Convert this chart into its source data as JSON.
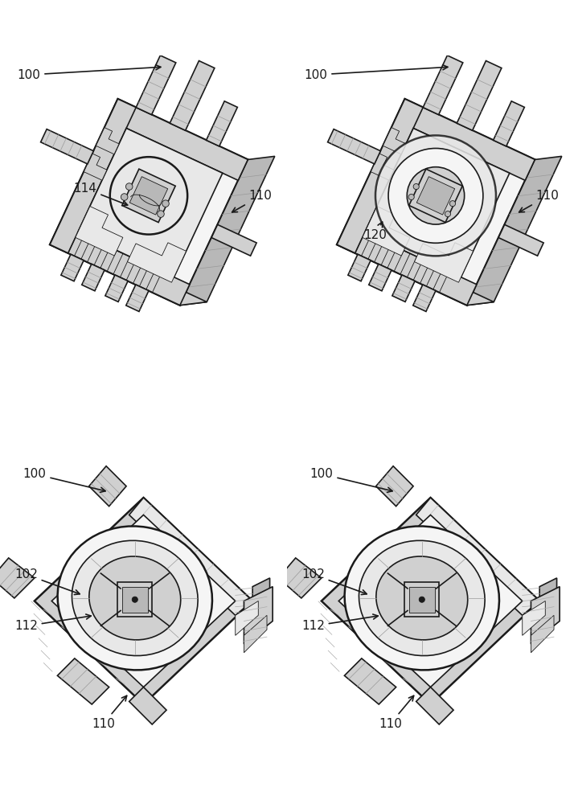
{
  "background": "#ffffff",
  "lc": "#1a1a1a",
  "lw": 1.2,
  "lw_thin": 0.6,
  "lw_thick": 1.8,
  "gray_light": "#e8e8e8",
  "gray_mid": "#d0d0d0",
  "gray_dark": "#b8b8b8",
  "gray_fill": "#f5f5f5",
  "white": "#ffffff",
  "hatch_color": "#bbbbbb"
}
